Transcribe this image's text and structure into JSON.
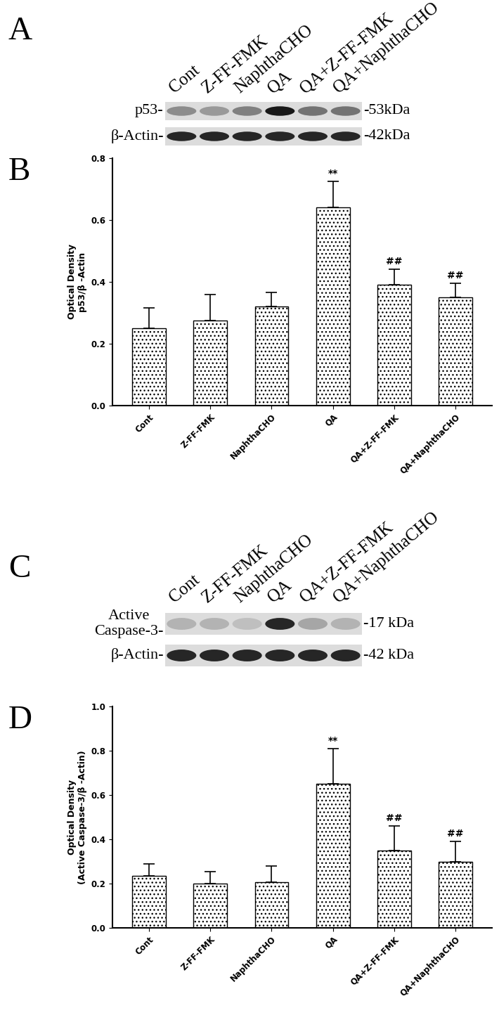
{
  "panel_labels": [
    "A",
    "B",
    "C",
    "D"
  ],
  "blots": [
    {
      "panel": "A",
      "lanes": [
        "Cont",
        "Z-FF-FMK",
        "NaphthaCHO",
        "QA",
        "QA+Z-FF-FMK",
        "QA+NaphthaCHO"
      ],
      "rows": [
        {
          "label": "p53-",
          "size": "-53kDa"
        },
        {
          "label": "β-Actin-",
          "size": "-42kDa"
        }
      ]
    },
    {
      "panel": "C",
      "lanes": [
        "Cont",
        "Z-FF-FMK",
        "NaphthaCHO",
        "QA",
        "QA+Z-FF-FMK",
        "QA+NaphthaCHO"
      ],
      "rows": [
        {
          "label": "Active\nCaspase-3-",
          "size": "-17 kDa"
        },
        {
          "label": "β-Actin-",
          "size": "-42 kDa"
        }
      ]
    }
  ],
  "chart_data": [
    {
      "type": "bar",
      "panel": "B",
      "categories": [
        "Cont",
        "Z-FF-FMK",
        "NaphthaCHO",
        "QA",
        "QA+Z-FF-FMK",
        "QA+NaphthaCHO"
      ],
      "values": [
        0.25,
        0.275,
        0.32,
        0.64,
        0.39,
        0.35
      ],
      "errors": [
        0.065,
        0.085,
        0.045,
        0.085,
        0.05,
        0.045
      ],
      "significance": [
        null,
        null,
        null,
        "**",
        "##",
        "##"
      ],
      "y_label": "Optical Density\np53/β -Actin",
      "ylim": [
        0.0,
        0.8
      ],
      "yticks": [
        0.0,
        0.2,
        0.4,
        0.6,
        0.8
      ],
      "color": "#ffffff"
    },
    {
      "type": "bar",
      "panel": "D",
      "categories": [
        "Cont",
        "Z-FF-FMK",
        "NaphthaCHO",
        "QA",
        "QA+Z-FF-FMK",
        "QA+NaphthaCHO"
      ],
      "values": [
        0.235,
        0.2,
        0.205,
        0.65,
        0.35,
        0.3
      ],
      "errors": [
        0.055,
        0.055,
        0.075,
        0.16,
        0.11,
        0.09
      ],
      "significance": [
        null,
        null,
        null,
        "**",
        "##",
        "##"
      ],
      "y_label": "Optical Density\n(Active Caspase-3/β -Actin)",
      "ylim": [
        0.0,
        1.0
      ],
      "yticks": [
        0.0,
        0.2,
        0.4,
        0.6,
        0.8,
        1.0
      ],
      "color": "#ffffff"
    }
  ]
}
